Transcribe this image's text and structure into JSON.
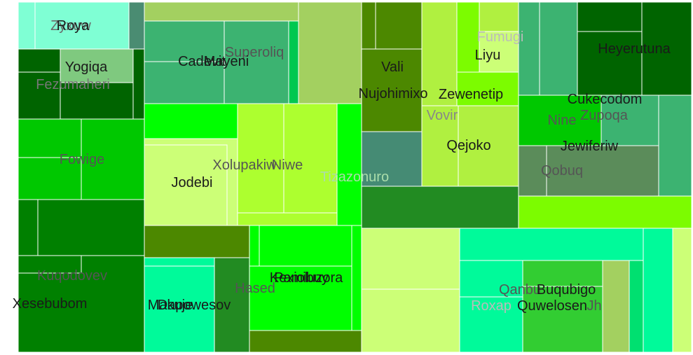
{
  "chart_data": {
    "type": "treemap",
    "title": "",
    "leaves": [
      {
        "label": "Zyxuw",
        "color": "#7fffd4",
        "weight": 1
      },
      {
        "label": "Roya",
        "color": "#7fffd4",
        "weight": 1
      },
      {
        "label": "Yogiqa",
        "color": "#7fc97f",
        "weight": 1
      },
      {
        "label": "Fezumaheri",
        "color": "#006400",
        "weight": 1
      },
      {
        "label": "Fowige",
        "color": "#00c800",
        "weight": 1
      },
      {
        "label": "Kuqodovev",
        "color": "#008000",
        "weight": 1
      },
      {
        "label": "Xesebubom",
        "color": "#008000",
        "weight": 1
      },
      {
        "label": "Superoliq",
        "color": "#3cb371",
        "weight": 1
      },
      {
        "label": "Mayeni",
        "color": "#3cb371",
        "weight": 1
      },
      {
        "label": "Cadevit",
        "color": "#3cb371",
        "weight": 1
      },
      {
        "label": "Xolupakiw",
        "color": "#adff2f",
        "weight": 1
      },
      {
        "label": "Niwe",
        "color": "#adff2f",
        "weight": 1
      },
      {
        "label": "Jodebi",
        "color": "#ccff77",
        "weight": 1
      },
      {
        "label": "Tizazonuro",
        "color": "#00ff00",
        "weight": 1
      },
      {
        "label": "Makuje",
        "color": "#00fa9a",
        "weight": 1
      },
      {
        "label": "Dapowesov",
        "color": "#00fa9a",
        "weight": 1
      },
      {
        "label": "Hased",
        "color": "#228b22",
        "weight": 1
      },
      {
        "label": "Kexioluzora",
        "color": "#00ff00",
        "weight": 1
      },
      {
        "label": "Pamibuy",
        "color": "#00ff00",
        "weight": 1
      },
      {
        "label": "Vali",
        "color": "#4c8800",
        "weight": 1
      },
      {
        "label": "Nujohimixo",
        "color": "#4c8800",
        "weight": 1
      },
      {
        "label": "Fumugi",
        "color": "#b0f040",
        "weight": 1
      },
      {
        "label": "Liyu",
        "color": "#7cfc00",
        "weight": 1
      },
      {
        "label": "Zewenetip",
        "color": "#7cfc00",
        "weight": 1
      },
      {
        "label": "Vovir",
        "color": "#b0f040",
        "weight": 1
      },
      {
        "label": "Qejoko",
        "color": "#b0f040",
        "weight": 1
      },
      {
        "label": "Heyerutuna",
        "color": "#006400",
        "weight": 1
      },
      {
        "label": "Cukecodom",
        "color": "#3cb371",
        "weight": 1
      },
      {
        "label": "Nine",
        "color": "#00c800",
        "weight": 1
      },
      {
        "label": "Zupoqa",
        "color": "#3cb371",
        "weight": 1
      },
      {
        "label": "Jewiferiw",
        "color": "#5b8c5a",
        "weight": 1
      },
      {
        "label": "Qobuq",
        "color": "#5b8c5a",
        "weight": 1
      },
      {
        "label": "Qanbu",
        "color": "#00fa9a",
        "weight": 1
      },
      {
        "label": "Roxap",
        "color": "#00fa9a",
        "weight": 1
      },
      {
        "label": "Buqubigo",
        "color": "#32cd32",
        "weight": 1
      },
      {
        "label": "Quwelosen",
        "color": "#32cd32",
        "weight": 1
      },
      {
        "label": "Jh",
        "color": "#00fa9a",
        "weight": 1
      }
    ]
  }
}
